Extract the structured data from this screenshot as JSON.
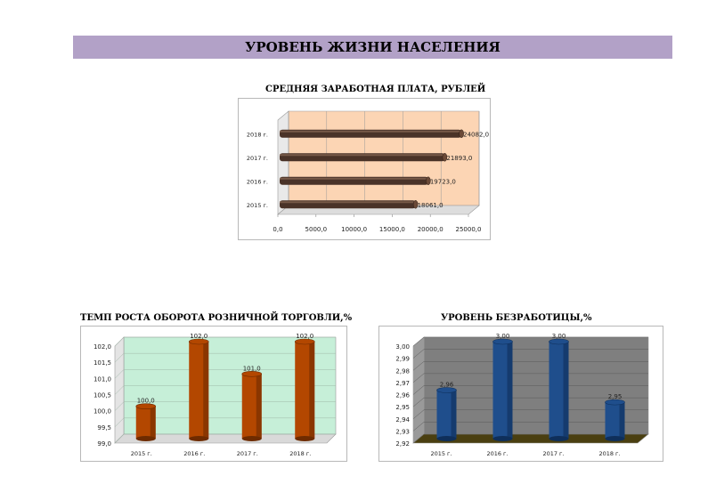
{
  "page": {
    "title": "УРОВЕНЬ ЖИЗНИ НАСЕЛЕНИЯ"
  },
  "colors": {
    "banner": "#b2a1c7",
    "salary_wall": "#fcd5b4",
    "salary_bar": "#4a3328",
    "retail_wall": "#c6efd8",
    "retail_bar": "#b34700",
    "unemp_wall": "#7f7f7f",
    "unemp_floor": "#4a3f10",
    "unemp_bar": "#1f4e8c"
  },
  "chart_data": [
    {
      "id": "salary",
      "type": "bar",
      "orientation": "horizontal",
      "title": "СРЕДНЯЯ ЗАРАБОТНАЯ ПЛАТА, РУБЛЕЙ",
      "categories": [
        "2015 г.",
        "2016 г.",
        "2017 г.",
        "2018 г."
      ],
      "values": [
        18061.0,
        19723.0,
        21893.0,
        24082.0
      ],
      "value_labels": [
        "18061,0",
        "19723,0",
        "21893,0",
        "24082,0"
      ],
      "xlim": [
        0,
        25000
      ],
      "ticks": [
        0,
        5000,
        10000,
        15000,
        20000,
        25000
      ],
      "tick_labels": [
        "0,0",
        "5000,0",
        "10000,0",
        "15000,0",
        "20000,0",
        "25000,0"
      ]
    },
    {
      "id": "retail",
      "type": "bar",
      "title": "ТЕМП РОСТА ОБОРОТА РОЗНИЧНОЙ ТОРГОВЛИ,%",
      "categories": [
        "2015 г.",
        "2016 г.",
        "2017 г.",
        "2018 г."
      ],
      "values": [
        100.0,
        102.0,
        101.0,
        102.0
      ],
      "value_labels": [
        "100,0",
        "102,0",
        "101,0",
        "102,0"
      ],
      "ylim": [
        99.0,
        102.0
      ],
      "ticks": [
        99.0,
        99.5,
        100.0,
        100.5,
        101.0,
        101.5,
        102.0
      ],
      "tick_labels": [
        "99,0",
        "99,5",
        "100,0",
        "100,5",
        "101,0",
        "101,5",
        "102,0"
      ]
    },
    {
      "id": "unemployment",
      "type": "bar",
      "title": "УРОВЕНЬ БЕЗРАБОТИЦЫ,%",
      "categories": [
        "2015 г.",
        "2016 г.",
        "2017 г.",
        "2018 г."
      ],
      "values": [
        2.96,
        3.0,
        3.0,
        2.95
      ],
      "value_labels": [
        "2,96",
        "3,00",
        "3,00",
        "2,95"
      ],
      "ylim": [
        2.92,
        3.0
      ],
      "ticks": [
        2.92,
        2.93,
        2.94,
        2.95,
        2.96,
        2.97,
        2.98,
        2.99,
        3.0
      ],
      "tick_labels": [
        "2,92",
        "2,93",
        "2,94",
        "2,95",
        "2,96",
        "2,97",
        "2,98",
        "2,99",
        "3,00"
      ]
    }
  ]
}
